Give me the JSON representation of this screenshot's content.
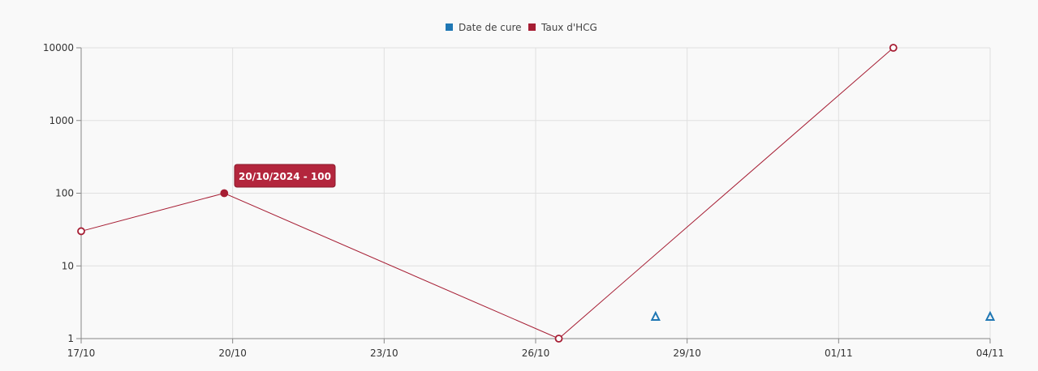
{
  "chart_data": {
    "type": "line",
    "title": "",
    "xlabel": "",
    "ylabel": "",
    "x_axis": {
      "type": "date",
      "range": [
        "2024-10-17",
        "2024-11-04"
      ],
      "tick_labels": [
        "17/10",
        "20/10",
        "23/10",
        "26/10",
        "29/10",
        "01/11",
        "04/11"
      ]
    },
    "y_axis": {
      "type": "log",
      "range": [
        1,
        10000
      ],
      "tick_labels": [
        "1",
        "10",
        "100",
        "1000",
        "10000"
      ]
    },
    "grid": true,
    "legend": {
      "placement": "top-center",
      "entries": [
        "Date de cure",
        "Taux d'HCG"
      ]
    },
    "series": [
      {
        "name": "Date de cure",
        "color": "#1f77b4",
        "marker": "triangle",
        "line": false,
        "points": [
          {
            "x": "2024-10-28T09:00",
            "y": 2
          },
          {
            "x": "2024-11-04T00:00",
            "y": 2
          }
        ]
      },
      {
        "name": "Taux d'HCG",
        "color": "#a61d33",
        "marker": "circle",
        "line": true,
        "points": [
          {
            "x": "2024-10-17T00:00",
            "y": 30
          },
          {
            "x": "2024-10-19T20:00",
            "y": 100
          },
          {
            "x": "2024-10-26T11:00",
            "y": 1
          },
          {
            "x": "2024-11-02T02:00",
            "y": 10000
          }
        ]
      }
    ],
    "tooltip": {
      "text": "20/10/2024 - 100",
      "series": "Taux d'HCG",
      "point_index": 1
    }
  }
}
